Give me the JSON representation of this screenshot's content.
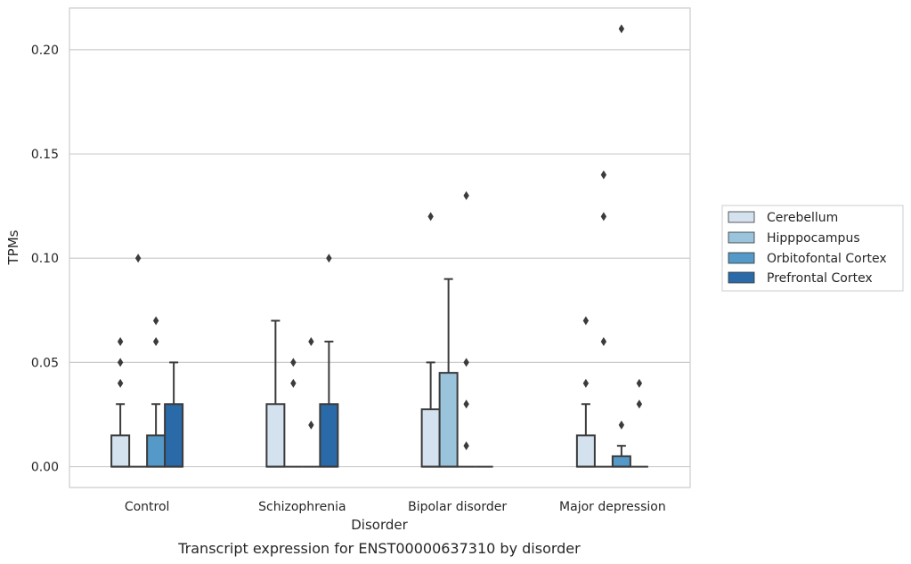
{
  "chart_data": {
    "type": "box",
    "title": "",
    "caption": "Transcript expression for ENST00000637310 by disorder",
    "xlabel": "Disorder",
    "ylabel": "TPMs",
    "categories": [
      "Control",
      "Schizophrenia",
      "Bipolar disorder",
      "Major depression"
    ],
    "ylim": [
      -0.01,
      0.22
    ],
    "yticks": [
      0.0,
      0.05,
      0.1,
      0.15,
      0.2
    ],
    "ytick_labels": [
      "0.00",
      "0.05",
      "0.10",
      "0.15",
      "0.20"
    ],
    "grid": "horizontal",
    "legend_position": "right",
    "series": [
      {
        "name": "Cerebellum",
        "color": "#d4e2f0",
        "boxes": [
          {
            "q1": 0.0,
            "median": 0.0,
            "q3": 0.015,
            "whisker_low": 0.0,
            "whisker_high": 0.03,
            "outliers": [
              0.04,
              0.05,
              0.06
            ]
          },
          {
            "q1": 0.0,
            "median": 0.0,
            "q3": 0.03,
            "whisker_low": 0.0,
            "whisker_high": 0.07,
            "outliers": []
          },
          {
            "q1": 0.0,
            "median": 0.0,
            "q3": 0.0275,
            "whisker_low": 0.0,
            "whisker_high": 0.05,
            "outliers": [
              0.12
            ]
          },
          {
            "q1": 0.0,
            "median": 0.0,
            "q3": 0.015,
            "whisker_low": 0.0,
            "whisker_high": 0.03,
            "outliers": [
              0.04,
              0.07
            ]
          }
        ]
      },
      {
        "name": "Hipppocampus",
        "color": "#9ac3dc",
        "boxes": [
          {
            "q1": 0.0,
            "median": 0.0,
            "q3": 0.0,
            "whisker_low": 0.0,
            "whisker_high": 0.0,
            "outliers": [
              0.1
            ]
          },
          {
            "q1": 0.0,
            "median": 0.0,
            "q3": 0.0,
            "whisker_low": 0.0,
            "whisker_high": 0.0,
            "outliers": [
              0.04,
              0.05
            ]
          },
          {
            "q1": 0.0,
            "median": 0.0,
            "q3": 0.045,
            "whisker_low": 0.0,
            "whisker_high": 0.09,
            "outliers": []
          },
          {
            "q1": 0.0,
            "median": 0.0,
            "q3": 0.0,
            "whisker_low": 0.0,
            "whisker_high": 0.0,
            "outliers": [
              0.06,
              0.12,
              0.14
            ]
          }
        ]
      },
      {
        "name": "Orbitofontal Cortex",
        "color": "#5499c7",
        "boxes": [
          {
            "q1": 0.0,
            "median": 0.0,
            "q3": 0.015,
            "whisker_low": 0.0,
            "whisker_high": 0.03,
            "outliers": [
              0.06,
              0.07
            ]
          },
          {
            "q1": 0.0,
            "median": 0.0,
            "q3": 0.0,
            "whisker_low": 0.0,
            "whisker_high": 0.0,
            "outliers": [
              0.02,
              0.06
            ]
          },
          {
            "q1": 0.0,
            "median": 0.0,
            "q3": 0.0,
            "whisker_low": 0.0,
            "whisker_high": 0.0,
            "outliers": [
              0.01,
              0.03,
              0.05,
              0.13
            ]
          },
          {
            "q1": 0.0,
            "median": 0.0,
            "q3": 0.005,
            "whisker_low": 0.0,
            "whisker_high": 0.01,
            "outliers": [
              0.02,
              0.21
            ]
          }
        ]
      },
      {
        "name": "Prefrontal Cortex",
        "color": "#2a6aa8",
        "boxes": [
          {
            "q1": 0.0,
            "median": 0.0,
            "q3": 0.03,
            "whisker_low": 0.0,
            "whisker_high": 0.05,
            "outliers": []
          },
          {
            "q1": 0.0,
            "median": 0.0,
            "q3": 0.03,
            "whisker_low": 0.0,
            "whisker_high": 0.06,
            "outliers": [
              0.1
            ]
          },
          {
            "q1": 0.0,
            "median": 0.0,
            "q3": 0.0,
            "whisker_low": 0.0,
            "whisker_high": 0.0,
            "outliers": []
          },
          {
            "q1": 0.0,
            "median": 0.0,
            "q3": 0.0,
            "whisker_low": 0.0,
            "whisker_high": 0.0,
            "outliers": [
              0.03,
              0.04
            ]
          }
        ]
      }
    ]
  }
}
